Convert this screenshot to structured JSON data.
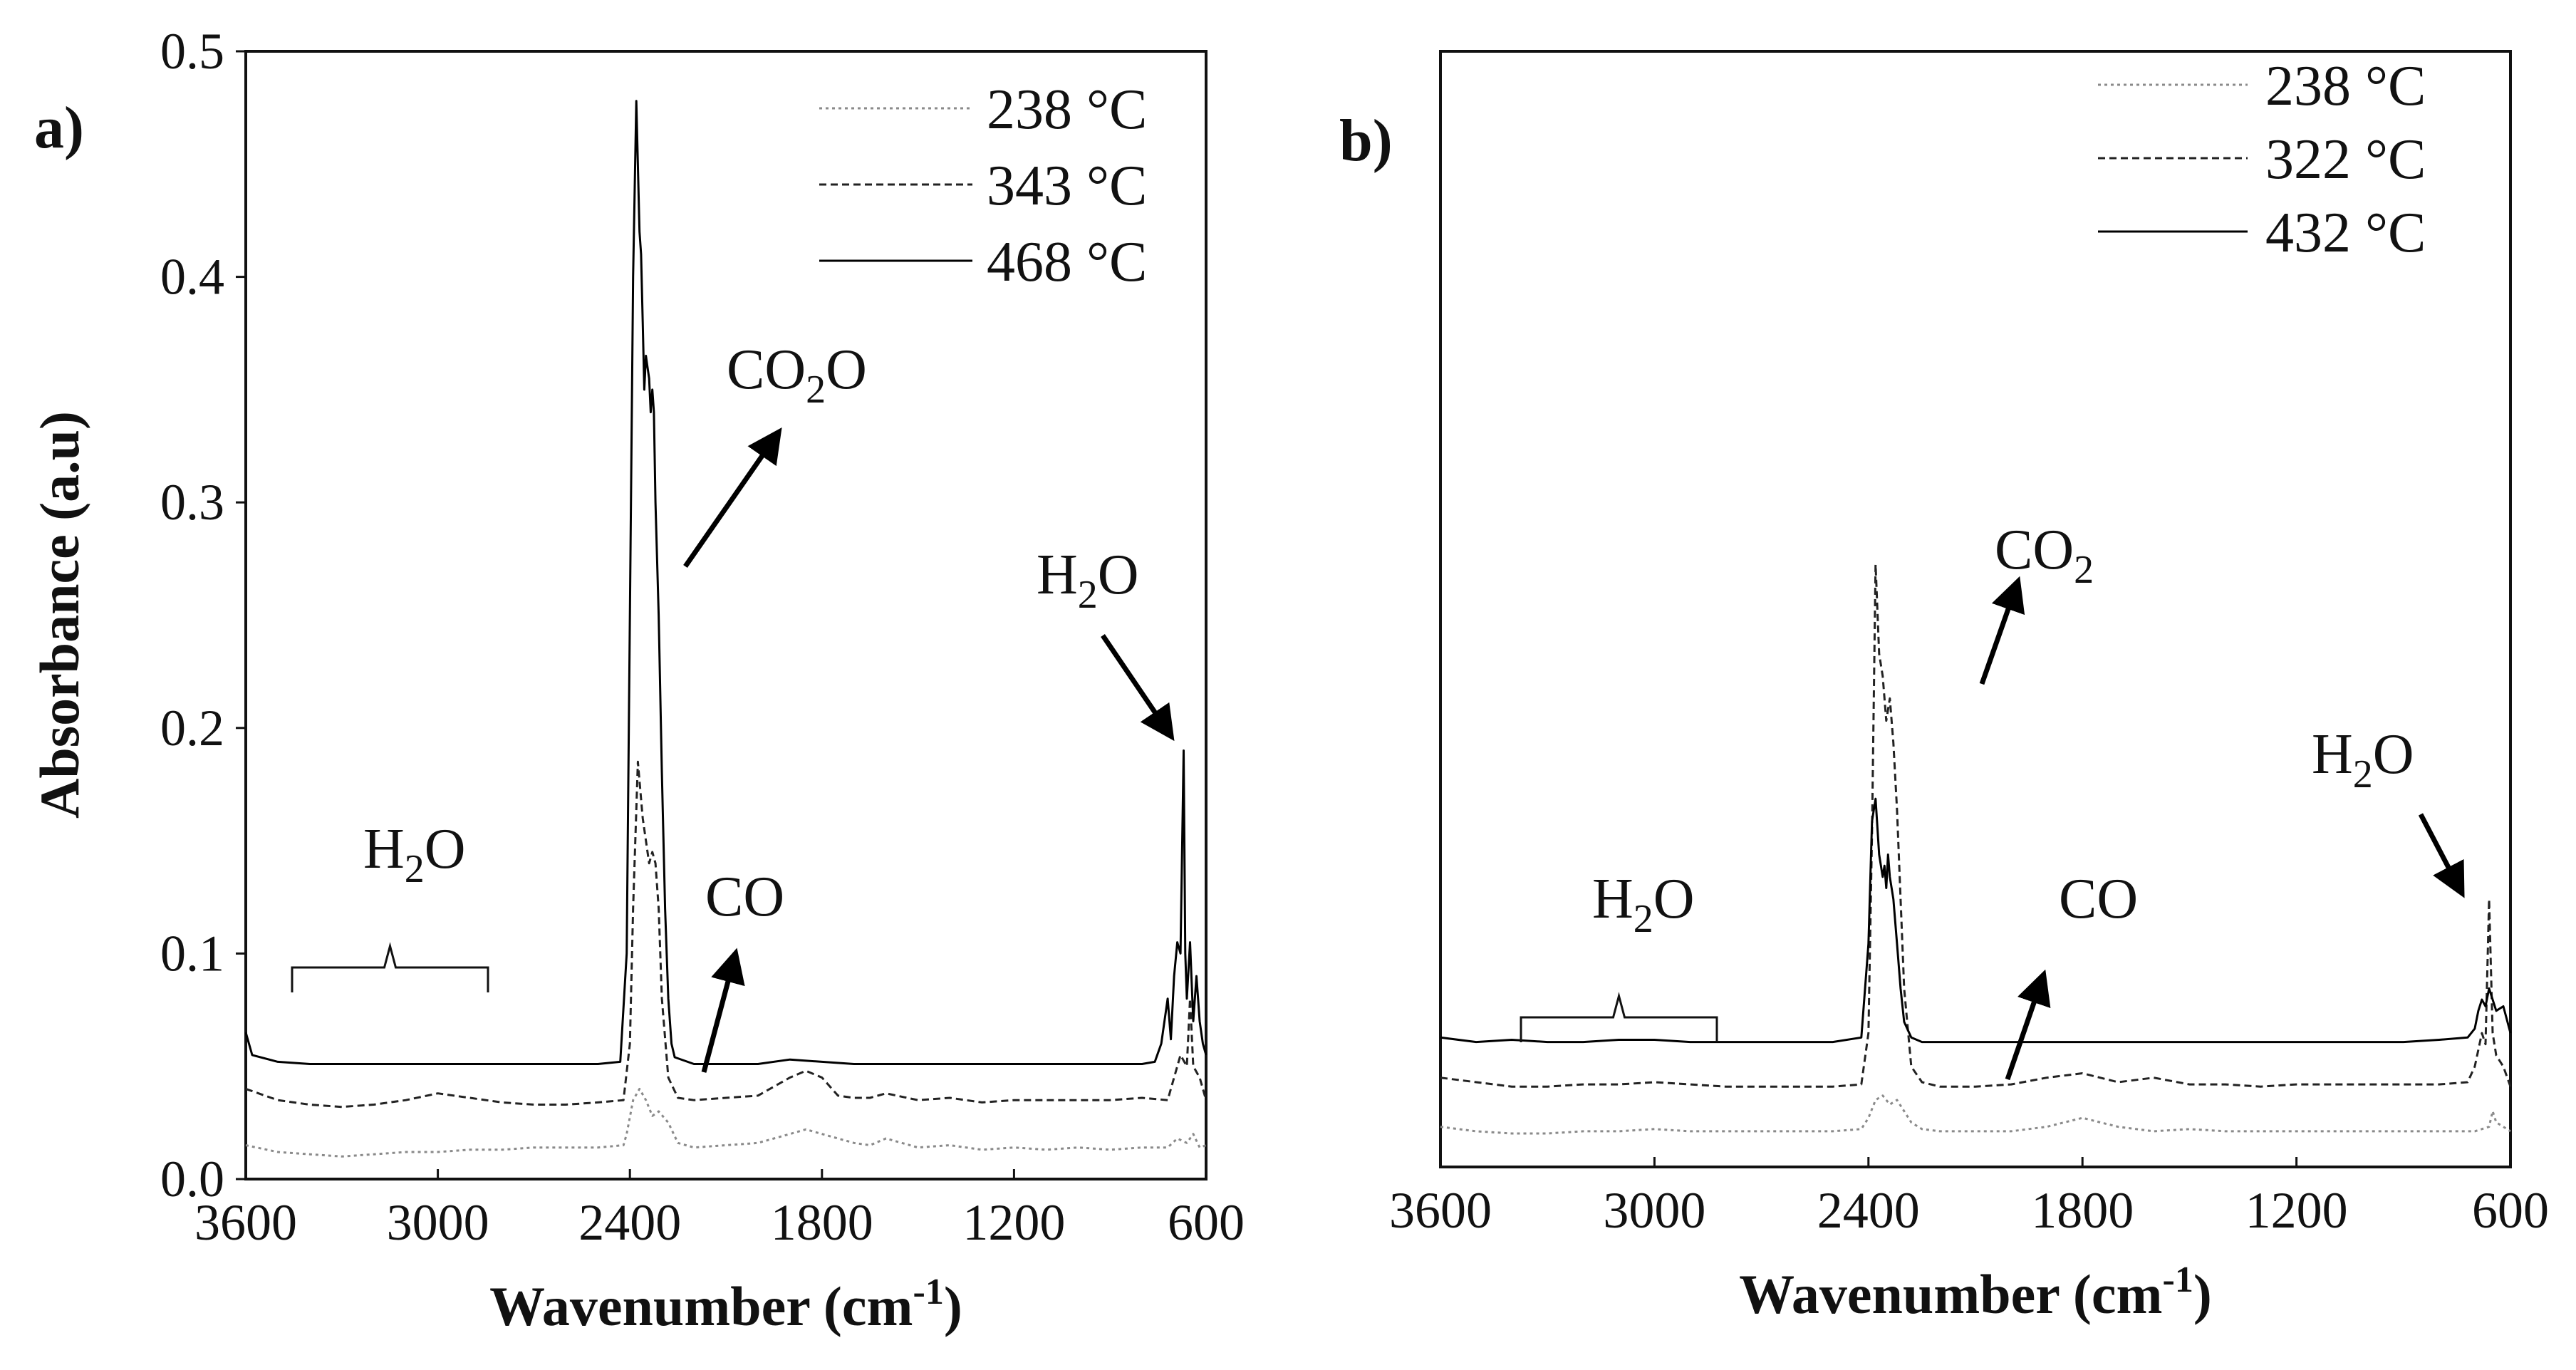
{
  "chart_data": [
    {
      "type": "line",
      "panel_label": "a)",
      "xlabel": "Wavenumber (cm",
      "xlabel_sup": "-1",
      "xlabel_close": ")",
      "ylabel": "Absorbance (a.u)",
      "xlim": [
        3600,
        600
      ],
      "ylim": [
        0,
        0.5
      ],
      "x_reversed": true,
      "xticks": [
        3600,
        3000,
        2400,
        1800,
        1200,
        600
      ],
      "xtick_labels": [
        "3600",
        "3000",
        "2400",
        "1800",
        "1200",
        "600"
      ],
      "yticks": [
        0,
        0.1,
        0.2,
        0.3,
        0.4,
        0.5
      ],
      "ytick_labels": [
        "0.0",
        "0.1",
        "0.2",
        "0.3",
        "0.4",
        "0.5"
      ],
      "show_y_ticks": true,
      "grid": false,
      "legend_position": "top-right",
      "series": [
        {
          "name": "238 °C",
          "style": "dotted",
          "color": "#8a8a8a",
          "x": [
            3600,
            3500,
            3400,
            3300,
            3200,
            3100,
            3000,
            2900,
            2800,
            2700,
            2600,
            2500,
            2420,
            2410,
            2390,
            2370,
            2350,
            2330,
            2310,
            2280,
            2250,
            2200,
            2100,
            2000,
            1900,
            1850,
            1800,
            1750,
            1700,
            1650,
            1600,
            1500,
            1400,
            1300,
            1200,
            1100,
            1000,
            900,
            800,
            720,
            690,
            660,
            640,
            620,
            600
          ],
          "y": [
            0.015,
            0.012,
            0.011,
            0.01,
            0.011,
            0.012,
            0.012,
            0.013,
            0.013,
            0.014,
            0.014,
            0.014,
            0.015,
            0.02,
            0.035,
            0.04,
            0.035,
            0.028,
            0.03,
            0.025,
            0.016,
            0.014,
            0.015,
            0.016,
            0.02,
            0.022,
            0.02,
            0.018,
            0.016,
            0.015,
            0.018,
            0.014,
            0.015,
            0.013,
            0.014,
            0.013,
            0.014,
            0.013,
            0.014,
            0.014,
            0.018,
            0.016,
            0.02,
            0.014,
            0.015
          ]
        },
        {
          "name": "343 °C",
          "style": "dashed",
          "color": "#222222",
          "x": [
            3600,
            3500,
            3400,
            3300,
            3200,
            3100,
            3000,
            2900,
            2800,
            2700,
            2600,
            2500,
            2420,
            2400,
            2390,
            2375,
            2360,
            2350,
            2340,
            2330,
            2320,
            2310,
            2300,
            2280,
            2250,
            2200,
            2100,
            2000,
            1900,
            1850,
            1800,
            1750,
            1700,
            1650,
            1600,
            1500,
            1400,
            1300,
            1200,
            1100,
            1000,
            900,
            800,
            720,
            700,
            680,
            660,
            650,
            640,
            620,
            600
          ],
          "y": [
            0.04,
            0.035,
            0.033,
            0.032,
            0.033,
            0.035,
            0.038,
            0.036,
            0.034,
            0.033,
            0.033,
            0.034,
            0.035,
            0.06,
            0.12,
            0.185,
            0.16,
            0.15,
            0.14,
            0.145,
            0.14,
            0.12,
            0.08,
            0.045,
            0.036,
            0.035,
            0.036,
            0.037,
            0.045,
            0.048,
            0.045,
            0.037,
            0.036,
            0.036,
            0.038,
            0.035,
            0.036,
            0.034,
            0.035,
            0.035,
            0.035,
            0.035,
            0.036,
            0.035,
            0.045,
            0.055,
            0.05,
            0.08,
            0.05,
            0.045,
            0.035
          ]
        },
        {
          "name": "468 °C",
          "style": "solid",
          "color": "#000000",
          "x": [
            3600,
            3580,
            3500,
            3400,
            3300,
            3200,
            3100,
            3000,
            2900,
            2800,
            2700,
            2600,
            2500,
            2430,
            2410,
            2400,
            2390,
            2380,
            2370,
            2365,
            2360,
            2355,
            2350,
            2345,
            2340,
            2335,
            2330,
            2325,
            2320,
            2310,
            2300,
            2290,
            2280,
            2270,
            2260,
            2200,
            2100,
            2000,
            1900,
            1800,
            1700,
            1600,
            1500,
            1400,
            1300,
            1200,
            1100,
            1000,
            900,
            800,
            760,
            740,
            720,
            710,
            700,
            690,
            680,
            670,
            665,
            660,
            650,
            640,
            630,
            620,
            610,
            600
          ],
          "y": [
            0.065,
            0.055,
            0.052,
            0.051,
            0.051,
            0.051,
            0.051,
            0.051,
            0.051,
            0.051,
            0.051,
            0.051,
            0.051,
            0.052,
            0.1,
            0.25,
            0.4,
            0.478,
            0.42,
            0.41,
            0.38,
            0.35,
            0.365,
            0.36,
            0.355,
            0.34,
            0.35,
            0.34,
            0.3,
            0.25,
            0.18,
            0.12,
            0.08,
            0.06,
            0.054,
            0.051,
            0.051,
            0.051,
            0.053,
            0.052,
            0.051,
            0.051,
            0.051,
            0.051,
            0.051,
            0.051,
            0.051,
            0.051,
            0.051,
            0.051,
            0.052,
            0.06,
            0.08,
            0.062,
            0.09,
            0.105,
            0.1,
            0.19,
            0.1,
            0.08,
            0.105,
            0.07,
            0.09,
            0.07,
            0.06,
            0.055
          ]
        }
      ],
      "annotations": [
        {
          "label": "CO",
          "sub": "2",
          "tail": "O",
          "x": 2080,
          "y": 0.345
        },
        {
          "label": "H",
          "sub": "2",
          "tail": "O",
          "x": 665,
          "y": 0.26
        },
        {
          "label": "H",
          "sub": "2",
          "tail": "O",
          "x": 3180,
          "y": 0.145
        },
        {
          "label": "CO",
          "sub": "",
          "tail": "",
          "x": 2000,
          "y": 0.12
        }
      ]
    },
    {
      "type": "line",
      "panel_label": "b)",
      "xlabel": "Wavenumber (cm",
      "xlabel_sup": "-1",
      "xlabel_close": ")",
      "xlim": [
        3600,
        600
      ],
      "ylim": [
        0,
        0.5
      ],
      "x_reversed": true,
      "xticks": [
        3600,
        3000,
        2400,
        1800,
        1200,
        600
      ],
      "xtick_labels": [
        "3600",
        "3000",
        "2400",
        "1800",
        "1200",
        "600"
      ],
      "show_y_ticks": false,
      "grid": false,
      "legend_position": "top-right",
      "series": [
        {
          "name": "238 °C",
          "style": "dotted",
          "color": "#8a8a8a",
          "x": [
            3600,
            3500,
            3400,
            3300,
            3200,
            3100,
            3000,
            2900,
            2800,
            2700,
            2600,
            2500,
            2420,
            2400,
            2380,
            2360,
            2340,
            2320,
            2300,
            2280,
            2250,
            2200,
            2100,
            2000,
            1900,
            1800,
            1750,
            1700,
            1650,
            1600,
            1500,
            1400,
            1300,
            1200,
            1100,
            1000,
            900,
            800,
            700,
            660,
            650,
            640,
            620,
            600
          ],
          "y": [
            0.018,
            0.016,
            0.015,
            0.015,
            0.016,
            0.016,
            0.017,
            0.016,
            0.016,
            0.016,
            0.016,
            0.016,
            0.017,
            0.022,
            0.03,
            0.032,
            0.028,
            0.03,
            0.025,
            0.02,
            0.017,
            0.016,
            0.016,
            0.016,
            0.018,
            0.022,
            0.02,
            0.018,
            0.017,
            0.016,
            0.017,
            0.016,
            0.016,
            0.016,
            0.016,
            0.016,
            0.016,
            0.016,
            0.016,
            0.018,
            0.025,
            0.02,
            0.018,
            0.016
          ]
        },
        {
          "name": "322  °C",
          "style": "dashed",
          "color": "#222222",
          "x": [
            3600,
            3500,
            3400,
            3300,
            3200,
            3100,
            3000,
            2900,
            2800,
            2700,
            2600,
            2500,
            2420,
            2400,
            2390,
            2380,
            2370,
            2360,
            2350,
            2340,
            2330,
            2320,
            2310,
            2300,
            2280,
            2250,
            2200,
            2100,
            2000,
            1900,
            1800,
            1700,
            1600,
            1500,
            1400,
            1300,
            1200,
            1100,
            1000,
            900,
            800,
            720,
            700,
            680,
            670,
            660,
            650,
            640,
            620,
            600
          ],
          "y": [
            0.04,
            0.038,
            0.036,
            0.036,
            0.037,
            0.037,
            0.038,
            0.037,
            0.036,
            0.036,
            0.036,
            0.036,
            0.037,
            0.06,
            0.15,
            0.27,
            0.23,
            0.22,
            0.2,
            0.21,
            0.19,
            0.16,
            0.12,
            0.08,
            0.045,
            0.038,
            0.036,
            0.036,
            0.037,
            0.04,
            0.042,
            0.038,
            0.04,
            0.037,
            0.037,
            0.036,
            0.037,
            0.037,
            0.037,
            0.037,
            0.037,
            0.038,
            0.045,
            0.06,
            0.055,
            0.12,
            0.06,
            0.05,
            0.045,
            0.036
          ]
        },
        {
          "name": "432  °C",
          "style": "solid",
          "color": "#000000",
          "x": [
            3600,
            3500,
            3400,
            3300,
            3200,
            3100,
            3000,
            2900,
            2800,
            2700,
            2600,
            2500,
            2420,
            2400,
            2390,
            2380,
            2370,
            2360,
            2355,
            2350,
            2345,
            2340,
            2330,
            2320,
            2310,
            2300,
            2280,
            2250,
            2200,
            2100,
            2000,
            1900,
            1800,
            1700,
            1600,
            1500,
            1400,
            1300,
            1200,
            1100,
            1000,
            900,
            800,
            720,
            700,
            690,
            680,
            670,
            660,
            650,
            640,
            620,
            600
          ],
          "y": [
            0.058,
            0.056,
            0.057,
            0.056,
            0.056,
            0.057,
            0.057,
            0.056,
            0.056,
            0.056,
            0.056,
            0.056,
            0.058,
            0.1,
            0.155,
            0.165,
            0.14,
            0.13,
            0.135,
            0.125,
            0.14,
            0.13,
            0.12,
            0.1,
            0.08,
            0.065,
            0.058,
            0.056,
            0.056,
            0.056,
            0.056,
            0.056,
            0.056,
            0.056,
            0.056,
            0.056,
            0.056,
            0.056,
            0.056,
            0.056,
            0.056,
            0.056,
            0.057,
            0.058,
            0.062,
            0.07,
            0.075,
            0.072,
            0.08,
            0.075,
            0.07,
            0.072,
            0.06
          ]
        }
      ],
      "annotations": [
        {
          "label": "CO",
          "sub": "2",
          "tail": "",
          "x": 2050,
          "y": 0.28
        },
        {
          "label": "H",
          "sub": "2",
          "tail": "O",
          "x": 705,
          "y": 0.185
        },
        {
          "label": "H",
          "sub": "2",
          "tail": "O",
          "x": 3010,
          "y": 0.12
        },
        {
          "label": "CO",
          "sub": "",
          "tail": "",
          "x": 1885,
          "y": 0.12
        }
      ]
    }
  ],
  "colors": {
    "axis": "#111111",
    "arrow": "#000000"
  }
}
